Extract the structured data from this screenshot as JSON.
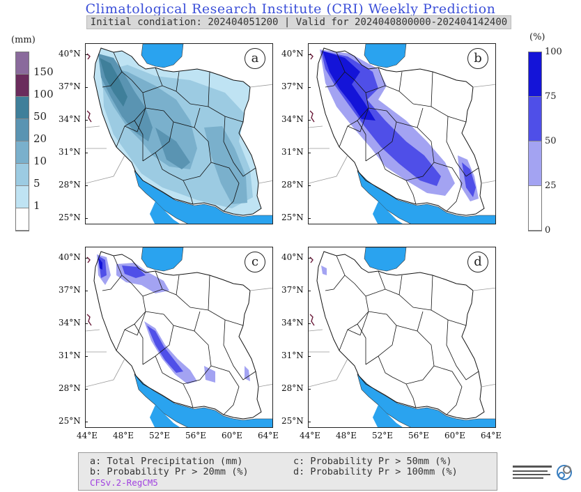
{
  "header": {
    "title": "Climatological Research Institute (CRI) Weekly Prediction",
    "subtitle": "Initial condiation: 202404051200 | Valid for 2024040800000-202404142400"
  },
  "left_colorbar": {
    "unit": "(mm)",
    "labels": [
      "150",
      "100",
      "50",
      "20",
      "10",
      "5",
      "1"
    ],
    "colors": [
      "#8a6a9c",
      "#6a2c5c",
      "#3f7f9a",
      "#5a94b2",
      "#7ab0cc",
      "#9ccbe2",
      "#bfe3f3",
      "#ffffff"
    ]
  },
  "right_colorbar": {
    "unit": "(%)",
    "labels": [
      "100",
      "75",
      "50",
      "25",
      "0"
    ],
    "colors": [
      "#1414d8",
      "#4f4fe8",
      "#a3a3f2",
      "#ffffff"
    ]
  },
  "map": {
    "lat_labels": [
      "40°N",
      "37°N",
      "34°N",
      "31°N",
      "28°N",
      "25°N"
    ],
    "lon_labels": [
      "44°E",
      "48°E",
      "52°E",
      "56°E",
      "60°E",
      "64°E"
    ],
    "sea_color": "#2aa3ef",
    "panels": [
      {
        "id": "a",
        "label": "a"
      },
      {
        "id": "b",
        "label": "b"
      },
      {
        "id": "c",
        "label": "c"
      },
      {
        "id": "d",
        "label": "d"
      }
    ]
  },
  "legend": {
    "a": "a: Total Precipitation (mm)",
    "b": "b: Probability Pr > 20mm (%)",
    "c": "c: Probability Pr > 50mm (%)",
    "d": "d: Probability Pr > 100mm (%)",
    "model": "CFSv.2-RegCM5",
    "model_color": "#a040e0"
  }
}
